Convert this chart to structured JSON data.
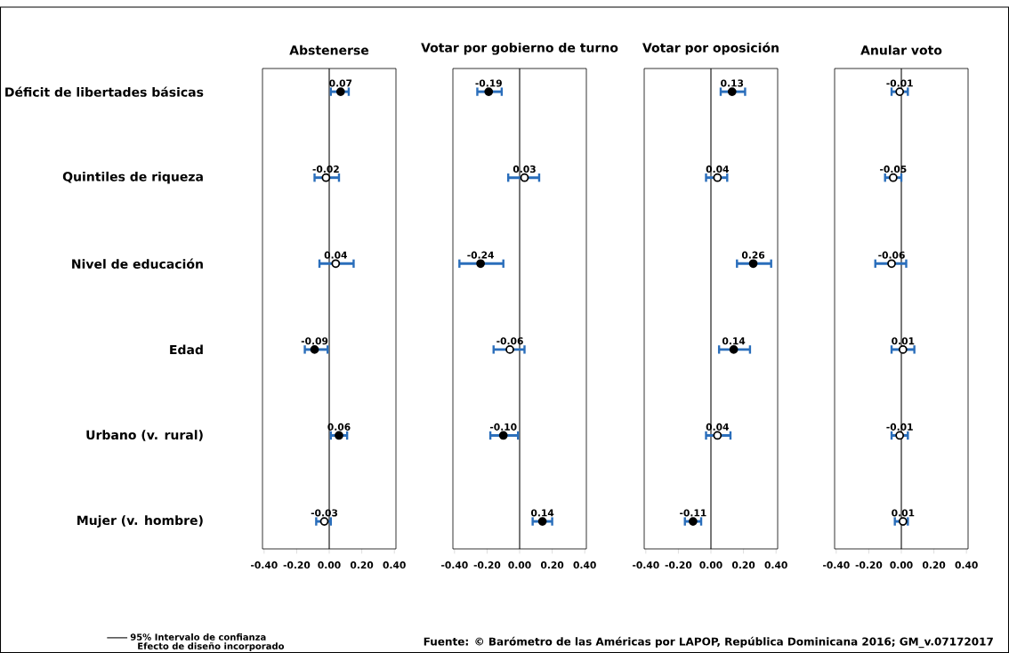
{
  "chart_data": [
    {
      "type": "scatter",
      "orientation": "horizontal",
      "title": "Abstenerse",
      "categories": [
        "Déficit de libertades básicas",
        "Quintiles de riqueza",
        "Nivel de educación",
        "Edad",
        "Urbano (v. rural)",
        "Mujer (v. hombre)"
      ],
      "xlim": [
        -0.41,
        0.41
      ],
      "xticks": [
        {
          "value": -0.4,
          "label": "-0.40"
        },
        {
          "value": -0.2,
          "label": "-0.20"
        },
        {
          "value": 0,
          "label": "0.00"
        },
        {
          "value": 0.2,
          "label": "0.20"
        },
        {
          "value": 0.4,
          "label": "0.40"
        }
      ],
      "marker": "circle",
      "legend": "bottom left",
      "ref_lines": [
        {
          "axis": "x",
          "value": 0,
          "color": "#000000"
        }
      ],
      "series": [
        {
          "name": "95% Intervalo de confianza",
          "color": "#2a6ebb",
          "values": [
            0.07,
            -0.02,
            0.04,
            -0.09,
            0.06,
            -0.03
          ],
          "value_labels": [
            "0.07",
            "-0.02",
            "0.04",
            "-0.09",
            "0.06",
            "-0.03"
          ],
          "errors": [
            [
              0.01,
              0.12
            ],
            [
              -0.09,
              0.06
            ],
            [
              -0.06,
              0.15
            ],
            [
              -0.15,
              -0.01
            ],
            [
              0.01,
              0.11
            ],
            [
              -0.08,
              0.01
            ]
          ],
          "colors": [
            "#000000",
            "#ffffff",
            "#ffffff",
            "#000000",
            "#000000",
            "#ffffff"
          ]
        }
      ],
      "annotations": [
        "Efecto de diseño incorporado",
        "Fuente: © Barómetro de las Américas por LAPOP, República Dominicana 2016; GM_v.07172017"
      ]
    },
    {
      "type": "scatter",
      "orientation": "horizontal",
      "title": "Votar por gobierno de turno",
      "categories": [
        null,
        null,
        null,
        null,
        null,
        null
      ],
      "tick_labels": "x",
      "xlim": [
        -0.41,
        0.41
      ],
      "xticks": [
        {
          "value": -0.4,
          "label": "-0.40"
        },
        {
          "value": -0.2,
          "label": "-0.20"
        },
        {
          "value": 0,
          "label": "0.00"
        },
        {
          "value": 0.2,
          "label": "0.20"
        },
        {
          "value": 0.4,
          "label": "0.40"
        }
      ],
      "marker": "circle",
      "ref_lines": [
        {
          "axis": "x",
          "value": 0,
          "color": "#000000"
        }
      ],
      "series": [
        {
          "color": "#2a6ebb",
          "values": [
            -0.19,
            0.03,
            -0.24,
            -0.06,
            -0.1,
            0.14
          ],
          "value_labels": [
            "-0.19",
            "0.03",
            "-0.24",
            "-0.06",
            "-0.10",
            "0.14"
          ],
          "errors": [
            [
              -0.26,
              -0.11
            ],
            [
              -0.07,
              0.12
            ],
            [
              -0.37,
              -0.1
            ],
            [
              -0.16,
              0.03
            ],
            [
              -0.18,
              -0.01
            ],
            [
              0.08,
              0.2
            ]
          ],
          "colors": [
            "#000000",
            "#ffffff",
            "#000000",
            "#ffffff",
            "#000000",
            "#000000"
          ]
        }
      ]
    },
    {
      "type": "scatter",
      "orientation": "horizontal",
      "title": "Votar por oposición",
      "categories": [
        null,
        null,
        null,
        null,
        null,
        null
      ],
      "tick_labels": "x",
      "xlim": [
        -0.41,
        0.41
      ],
      "xticks": [
        {
          "value": -0.4,
          "label": "-0.40"
        },
        {
          "value": -0.2,
          "label": "-0.20"
        },
        {
          "value": 0,
          "label": "0.00"
        },
        {
          "value": 0.2,
          "label": "0.20"
        },
        {
          "value": 0.4,
          "label": "0.40"
        }
      ],
      "marker": "circle",
      "ref_lines": [
        {
          "axis": "x",
          "value": 0,
          "color": "#000000"
        }
      ],
      "series": [
        {
          "color": "#2a6ebb",
          "values": [
            0.13,
            0.04,
            0.26,
            0.14,
            0.04,
            -0.11
          ],
          "value_labels": [
            "0.13",
            "0.04",
            "0.26",
            "0.14",
            "0.04",
            "-0.11"
          ],
          "errors": [
            [
              0.06,
              0.21
            ],
            [
              -0.03,
              0.1
            ],
            [
              0.16,
              0.37
            ],
            [
              0.05,
              0.24
            ],
            [
              -0.03,
              0.12
            ],
            [
              -0.16,
              -0.06
            ]
          ],
          "colors": [
            "#000000",
            "#ffffff",
            "#000000",
            "#000000",
            "#ffffff",
            "#000000"
          ]
        }
      ]
    },
    {
      "type": "scatter",
      "orientation": "horizontal",
      "title": "Anular voto",
      "categories": [
        null,
        null,
        null,
        null,
        null,
        null
      ],
      "tick_labels": "x",
      "xlim": [
        -0.41,
        0.41
      ],
      "xticks": [
        {
          "value": -0.4,
          "label": "-0.40"
        },
        {
          "value": -0.2,
          "label": "-0.20"
        },
        {
          "value": 0,
          "label": "0.00"
        },
        {
          "value": 0.2,
          "label": "0.20"
        },
        {
          "value": 0.4,
          "label": "0.40"
        }
      ],
      "marker": "circle",
      "ref_lines": [
        {
          "axis": "x",
          "value": 0,
          "color": "#000000"
        }
      ],
      "series": [
        {
          "color": "#2a6ebb",
          "values": [
            -0.01,
            -0.05,
            -0.06,
            0.01,
            -0.01,
            0.01
          ],
          "value_labels": [
            "-0.01",
            "-0.05",
            "-0.06",
            "0.01",
            "-0.01",
            "0.01"
          ],
          "errors": [
            [
              -0.06,
              0.04
            ],
            [
              -0.1,
              0.0
            ],
            [
              -0.16,
              0.03
            ],
            [
              -0.06,
              0.08
            ],
            [
              -0.06,
              0.04
            ],
            [
              -0.04,
              0.04
            ]
          ],
          "colors": [
            "#ffffff",
            "#ffffff",
            "#ffffff",
            "#ffffff",
            "#ffffff",
            "#ffffff"
          ]
        }
      ]
    }
  ]
}
